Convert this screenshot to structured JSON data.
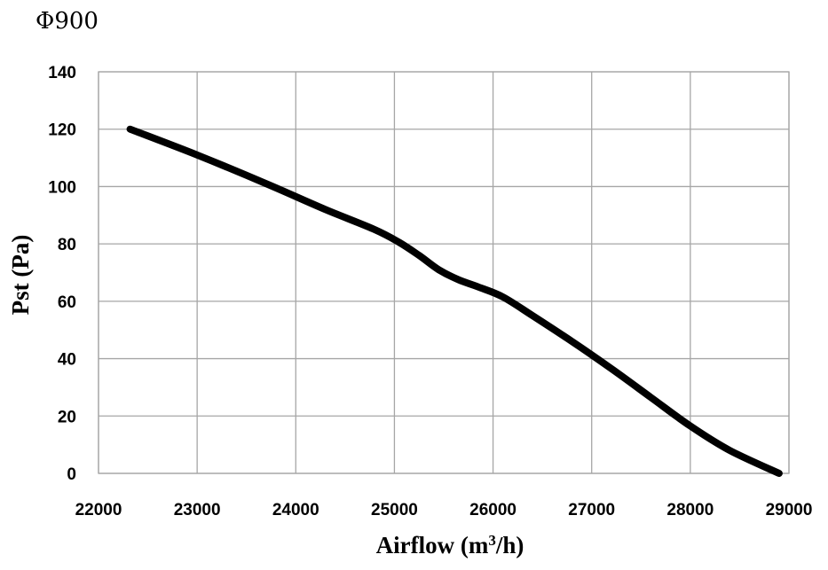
{
  "chart_data": {
    "type": "line",
    "title": "Φ900",
    "xlabel": "Airflow (m",
    "xlabel_superscript": "3",
    "xlabel_suffix": "/h)",
    "ylabel": "Pst (Pa)",
    "xlim": [
      22000,
      29000
    ],
    "ylim": [
      0,
      140
    ],
    "xticks": [
      22000,
      23000,
      24000,
      25000,
      26000,
      27000,
      28000,
      29000
    ],
    "yticks": [
      0,
      20,
      40,
      60,
      80,
      100,
      120,
      140
    ],
    "grid": true,
    "legend": "none",
    "series": [
      {
        "color": "#000000",
        "x": [
          22320,
          23000,
          23700,
          24300,
          24800,
          25050,
          25250,
          25450,
          25650,
          25850,
          26100,
          26400,
          26800,
          27200,
          27600,
          28000,
          28400,
          28900
        ],
        "y": [
          120,
          111,
          101,
          92,
          85,
          80.5,
          76,
          71,
          67.5,
          65,
          61.5,
          55,
          46,
          36.5,
          26.5,
          16.5,
          8,
          0
        ]
      }
    ]
  }
}
